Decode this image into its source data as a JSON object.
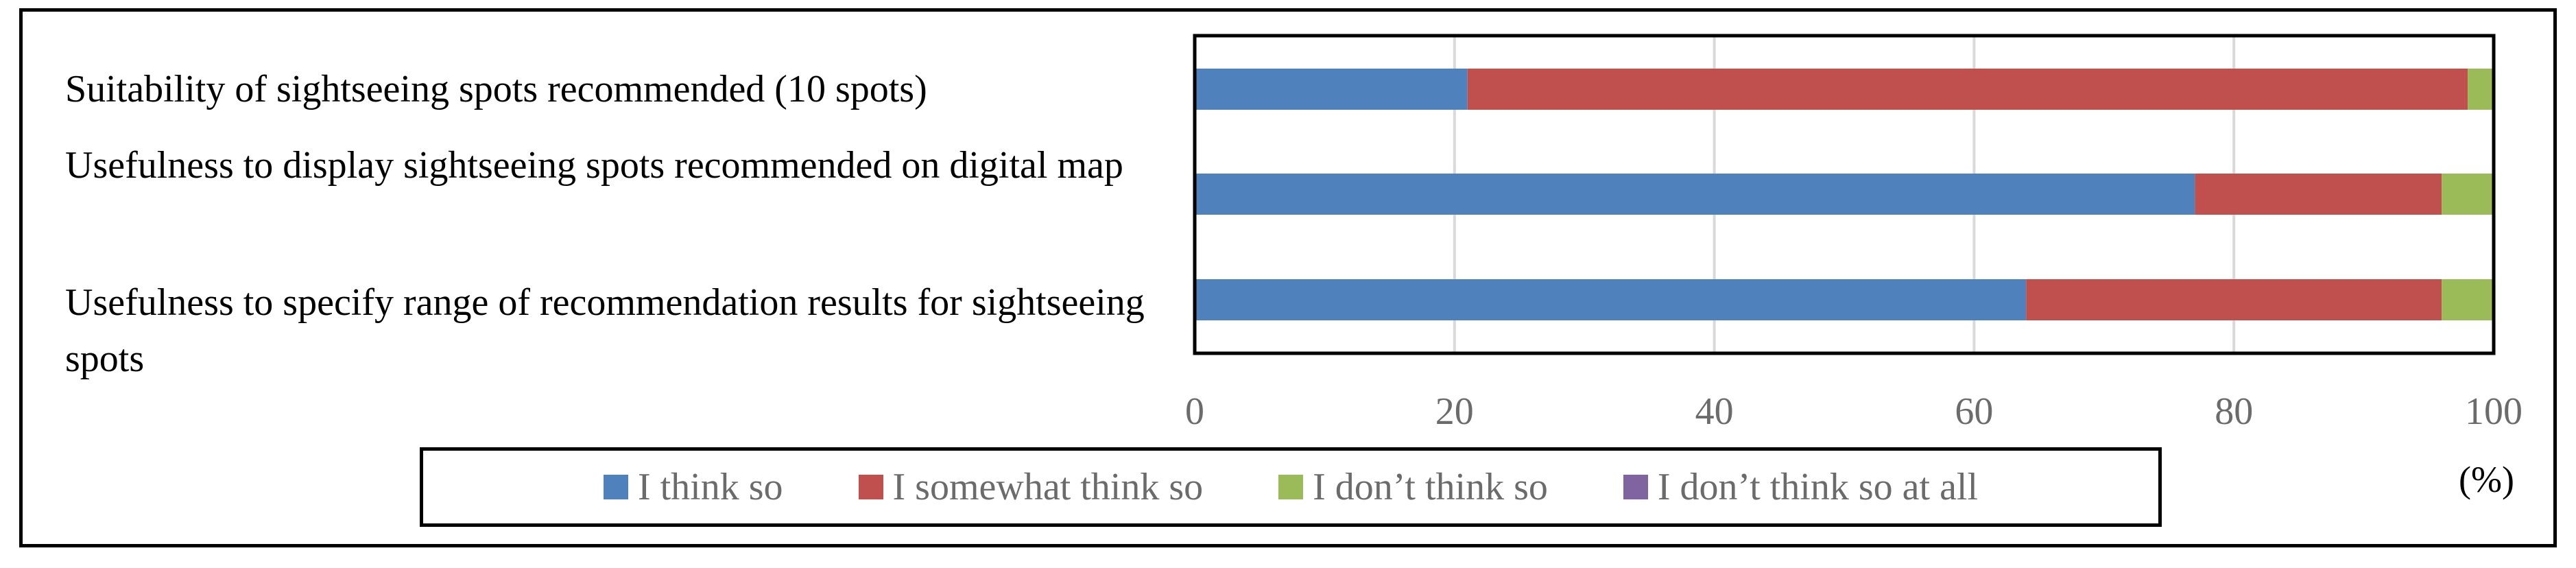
{
  "chart_data": {
    "type": "bar",
    "orientation": "horizontal",
    "stacked": true,
    "categories": [
      "Suitability of sightseeing spots recommended (10 spots)",
      "Usefulness to display sightseeing spots recommended on digital map",
      "Usefulness to specify range of recommendation results for sightseeing spots"
    ],
    "series": [
      {
        "name": "I think so",
        "color": "#4f81bd",
        "values": [
          21,
          77,
          64
        ]
      },
      {
        "name": "I somewhat think so",
        "color": "#c0504d",
        "values": [
          77,
          19,
          32
        ]
      },
      {
        "name": "I don’t think so",
        "color": "#9bbb59",
        "values": [
          2,
          4,
          4
        ]
      },
      {
        "name": "I don’t think so at all",
        "color": "#8064a2",
        "values": [
          0,
          0,
          0
        ]
      }
    ],
    "xlim": [
      0,
      100
    ],
    "xticks": [
      "0",
      "20",
      "40",
      "60",
      "80",
      "100"
    ],
    "xunit": "(%)",
    "grid": true,
    "legend_position": "bottom"
  }
}
